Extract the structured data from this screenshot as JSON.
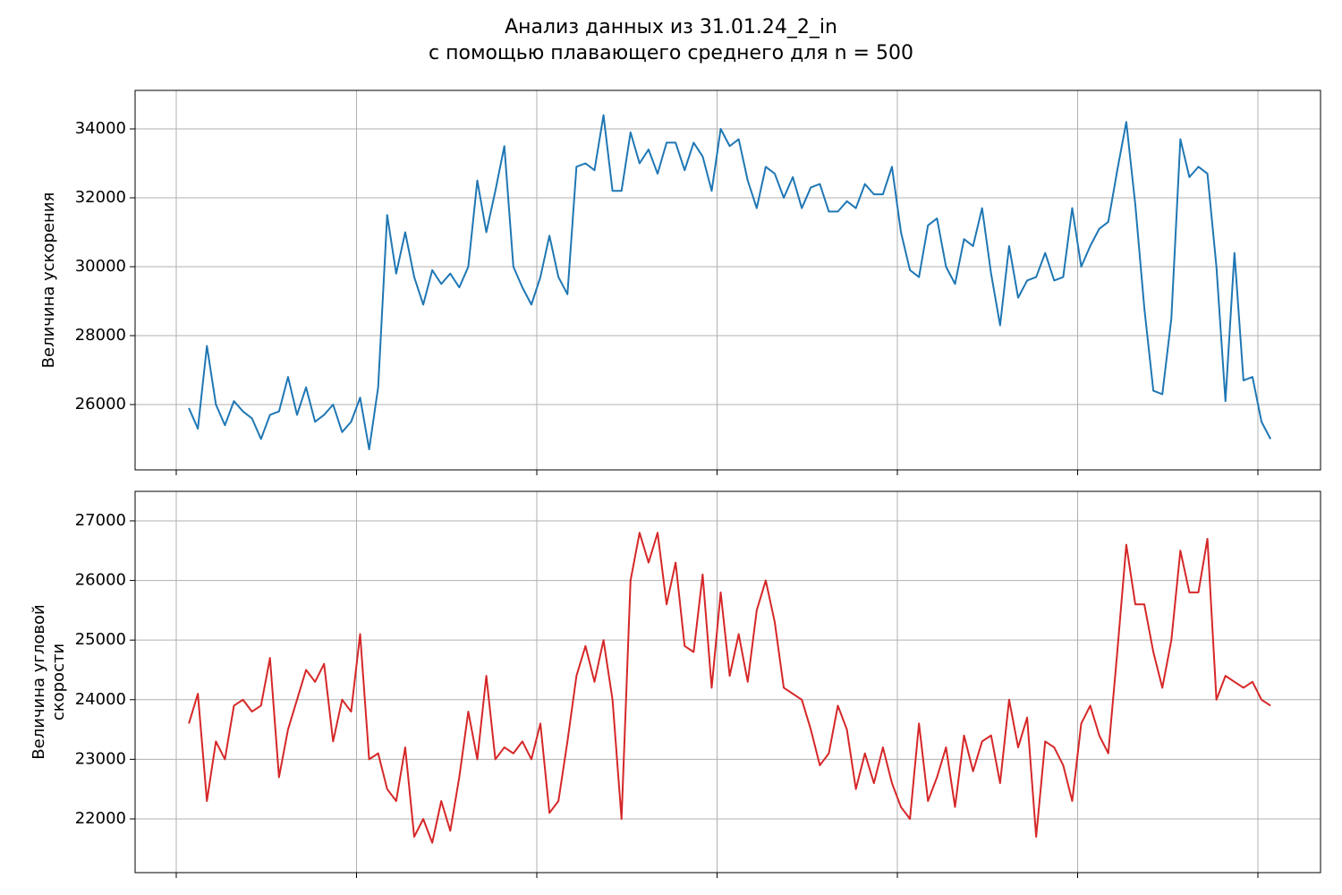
{
  "title": [
    "Анализ данных из 31.01.24_2_in",
    "с помощью плавающего среднего для n = 500"
  ],
  "chart_data": [
    {
      "type": "line",
      "ylabel": [
        "Величина ускорения"
      ],
      "color": "#1f77b4",
      "grid": true,
      "xlim": [
        -2283,
        63474
      ],
      "xticks": [
        0,
        10000,
        20000,
        30000,
        40000,
        50000,
        60000
      ],
      "ylim": [
        24104,
        35117
      ],
      "yticks": [
        26000,
        28000,
        30000,
        32000,
        34000
      ],
      "x": [
        700,
        1200,
        1700,
        2200,
        2700,
        3200,
        3700,
        4200,
        4700,
        5200,
        5700,
        6200,
        6700,
        7200,
        7700,
        8200,
        8700,
        9200,
        9700,
        10200,
        10700,
        11200,
        11700,
        12200,
        12700,
        13200,
        13700,
        14200,
        14700,
        15200,
        15700,
        16200,
        16700,
        17200,
        17700,
        18200,
        18700,
        19200,
        19700,
        20200,
        20700,
        21200,
        21700,
        22200,
        22700,
        23200,
        23700,
        24200,
        24700,
        25200,
        25700,
        26200,
        26700,
        27200,
        27700,
        28200,
        28700,
        29200,
        29700,
        30200,
        30700,
        31200,
        31700,
        32200,
        32700,
        33200,
        33700,
        34200,
        34700,
        35200,
        35700,
        36200,
        36700,
        37200,
        37700,
        38200,
        38700,
        39200,
        39700,
        40200,
        40700,
        41200,
        41700,
        42200,
        42700,
        43200,
        43700,
        44200,
        44700,
        45200,
        45700,
        46200,
        46700,
        47200,
        47700,
        48200,
        48700,
        49200,
        49700,
        50200,
        50700,
        51200,
        51700,
        52200,
        52700,
        53200,
        53700,
        54200,
        54700,
        55200,
        55700,
        56200,
        56700,
        57200,
        57700,
        58200,
        58700,
        59200,
        59700,
        60200,
        60700
      ],
      "values": [
        25900,
        25300,
        27700,
        26000,
        25400,
        26100,
        25800,
        25600,
        25000,
        25700,
        25800,
        26800,
        25700,
        26500,
        25500,
        25700,
        26000,
        25200,
        25500,
        26200,
        24700,
        26500,
        31500,
        29800,
        31000,
        29700,
        28900,
        29900,
        29500,
        29800,
        29400,
        30000,
        32500,
        31000,
        32200,
        33500,
        30000,
        29400,
        28900,
        29700,
        30900,
        29700,
        29200,
        32900,
        33000,
        32800,
        34400,
        32200,
        32200,
        33900,
        33000,
        33400,
        32700,
        33600,
        33600,
        32800,
        33600,
        33200,
        32200,
        34000,
        33500,
        33700,
        32500,
        31700,
        32900,
        32700,
        32000,
        32600,
        31700,
        32300,
        32400,
        31600,
        31600,
        31900,
        31700,
        32400,
        32100,
        32100,
        32900,
        31000,
        29900,
        29700,
        31200,
        31400,
        30000,
        29500,
        30800,
        30600,
        31700,
        29800,
        28300,
        30600,
        29100,
        29600,
        29700,
        30400,
        29600,
        29700,
        31700,
        30000,
        30600,
        31100,
        31300,
        32800,
        34200,
        31800,
        28800,
        26400,
        26300,
        28500,
        33700,
        32600,
        32900,
        32700,
        30000,
        26100,
        30400,
        26700,
        26800,
        25500,
        25000
      ]
    },
    {
      "type": "line",
      "ylabel": [
        "Величина угловой",
        "скорости"
      ],
      "color": "#d62728",
      "grid": true,
      "xlim": [
        -2283,
        63474
      ],
      "xticks": [
        0,
        10000,
        20000,
        30000,
        40000,
        50000,
        60000
      ],
      "ylim": [
        21099,
        27495
      ],
      "yticks": [
        22000,
        23000,
        24000,
        25000,
        26000,
        27000
      ],
      "x": [
        700,
        1200,
        1700,
        2200,
        2700,
        3200,
        3700,
        4200,
        4700,
        5200,
        5700,
        6200,
        6700,
        7200,
        7700,
        8200,
        8700,
        9200,
        9700,
        10200,
        10700,
        11200,
        11700,
        12200,
        12700,
        13200,
        13700,
        14200,
        14700,
        15200,
        15700,
        16200,
        16700,
        17200,
        17700,
        18200,
        18700,
        19200,
        19700,
        20200,
        20700,
        21200,
        21700,
        22200,
        22700,
        23200,
        23700,
        24200,
        24700,
        25200,
        25700,
        26200,
        26700,
        27200,
        27700,
        28200,
        28700,
        29200,
        29700,
        30200,
        30700,
        31200,
        31700,
        32200,
        32700,
        33200,
        33700,
        34200,
        34700,
        35200,
        35700,
        36200,
        36700,
        37200,
        37700,
        38200,
        38700,
        39200,
        39700,
        40200,
        40700,
        41200,
        41700,
        42200,
        42700,
        43200,
        43700,
        44200,
        44700,
        45200,
        45700,
        46200,
        46700,
        47200,
        47700,
        48200,
        48700,
        49200,
        49700,
        50200,
        50700,
        51200,
        51700,
        52200,
        52700,
        53200,
        53700,
        54200,
        54700,
        55200,
        55700,
        56200,
        56700,
        57200,
        57700,
        58200,
        58700,
        59200,
        59700,
        60200,
        60700
      ],
      "values": [
        23600,
        24100,
        22300,
        23300,
        23000,
        23900,
        24000,
        23800,
        23900,
        24700,
        22700,
        23500,
        24000,
        24500,
        24300,
        24600,
        23300,
        24000,
        23800,
        25100,
        23000,
        23100,
        22500,
        22300,
        23200,
        21700,
        22000,
        21600,
        22300,
        21800,
        22700,
        23800,
        23000,
        24400,
        23000,
        23200,
        23100,
        23300,
        23000,
        23600,
        22100,
        22300,
        23300,
        24400,
        24900,
        24300,
        25000,
        24000,
        22000,
        26000,
        26800,
        26300,
        26800,
        25600,
        26300,
        24900,
        24800,
        26100,
        24200,
        25800,
        24400,
        25100,
        24300,
        25500,
        26000,
        25300,
        24200,
        24100,
        24000,
        23500,
        22900,
        23100,
        23900,
        23500,
        22500,
        23100,
        22600,
        23200,
        22600,
        22200,
        22000,
        23600,
        22300,
        22700,
        23200,
        22200,
        23400,
        22800,
        23300,
        23400,
        22600,
        24000,
        23200,
        23700,
        21700,
        23300,
        23200,
        22900,
        22300,
        23600,
        23900,
        23400,
        23100,
        24800,
        26600,
        25600,
        25600,
        24800,
        24200,
        25000,
        26500,
        25800,
        25800,
        26700,
        24000,
        24400,
        24300,
        24200,
        24300,
        24000,
        23900
      ]
    }
  ]
}
